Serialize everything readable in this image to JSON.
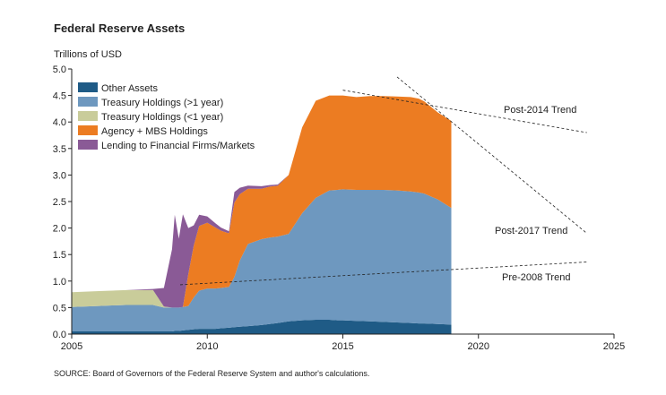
{
  "chart_data": {
    "type": "area",
    "title": "Federal Reserve Assets",
    "ylabel": "Trillions of USD",
    "source": "SOURCE: Board of Governors of the Federal Reserve System and author's calculations.",
    "xlim": [
      2005,
      2025
    ],
    "ylim": [
      0,
      5
    ],
    "x_ticks": [
      "2005",
      "2010",
      "2015",
      "2020",
      "2025"
    ],
    "y_ticks": [
      "0.0",
      "0.5",
      "1.0",
      "1.5",
      "2.0",
      "2.5",
      "3.0",
      "3.5",
      "4.0",
      "4.5",
      "5.0"
    ],
    "stacking_order": [
      "Other Assets",
      "Treasury Holdings (>1 year)",
      "Treasury Holdings (<1 year)",
      "Agency + MBS Holdings",
      "Lending to Financial Firms/Markets"
    ],
    "x": [
      2005.0,
      2006.0,
      2007.0,
      2008.0,
      2008.4,
      2008.7,
      2008.8,
      2008.95,
      2009.1,
      2009.3,
      2009.5,
      2009.7,
      2010.0,
      2010.3,
      2010.5,
      2010.8,
      2011.0,
      2011.2,
      2011.5,
      2012.0,
      2012.3,
      2012.6,
      2013.0,
      2013.5,
      2014.0,
      2014.5,
      2014.8,
      2015.0,
      2015.5,
      2016.0,
      2016.5,
      2017.0,
      2017.5,
      2017.8,
      2018.0,
      2018.5,
      2019.0
    ],
    "series": [
      {
        "name": "Other Assets",
        "color": "#1f5b86",
        "values": [
          0.05,
          0.05,
          0.05,
          0.05,
          0.05,
          0.05,
          0.06,
          0.06,
          0.07,
          0.08,
          0.09,
          0.1,
          0.1,
          0.1,
          0.11,
          0.12,
          0.13,
          0.14,
          0.15,
          0.17,
          0.19,
          0.21,
          0.24,
          0.26,
          0.27,
          0.27,
          0.26,
          0.26,
          0.25,
          0.24,
          0.23,
          0.22,
          0.21,
          0.2,
          0.2,
          0.19,
          0.18
        ]
      },
      {
        "name": "Treasury Holdings (>1 year)",
        "color": "#6e98bf",
        "values": [
          0.46,
          0.48,
          0.5,
          0.5,
          0.45,
          0.45,
          0.44,
          0.44,
          0.44,
          0.45,
          0.6,
          0.72,
          0.76,
          0.76,
          0.76,
          0.77,
          0.95,
          1.25,
          1.55,
          1.62,
          1.63,
          1.63,
          1.65,
          2.02,
          2.3,
          2.44,
          2.46,
          2.47,
          2.47,
          2.48,
          2.49,
          2.49,
          2.48,
          2.47,
          2.45,
          2.35,
          2.2
        ]
      },
      {
        "name": "Treasury Holdings (<1 year)",
        "color": "#c9cc9a",
        "values": [
          0.28,
          0.28,
          0.28,
          0.28,
          0.02,
          0.0,
          0.0,
          0.0,
          0.0,
          0.0,
          0.0,
          0.0,
          0.0,
          0.0,
          0.0,
          0.0,
          0.0,
          0.0,
          0.0,
          0.0,
          0.0,
          0.0,
          0.0,
          0.0,
          0.0,
          0.0,
          0.0,
          0.0,
          0.0,
          0.0,
          0.0,
          0.0,
          0.0,
          0.0,
          0.0,
          0.0,
          0.0
        ]
      },
      {
        "name": "Agency + MBS Holdings",
        "color": "#ec7c22",
        "values": [
          0.0,
          0.0,
          0.0,
          0.0,
          0.0,
          0.0,
          0.0,
          0.0,
          0.0,
          0.6,
          0.98,
          1.22,
          1.24,
          1.15,
          1.08,
          1.01,
          1.4,
          1.25,
          1.04,
          0.95,
          0.96,
          0.96,
          1.11,
          1.62,
          1.83,
          1.79,
          1.78,
          1.77,
          1.75,
          1.77,
          1.77,
          1.77,
          1.78,
          1.77,
          1.74,
          1.64,
          1.64
        ]
      },
      {
        "name": "Lending to Financial Firms/Markets",
        "color": "#8a5a96",
        "values": [
          0.0,
          0.0,
          0.0,
          0.02,
          0.35,
          1.1,
          1.75,
          1.3,
          1.75,
          0.87,
          0.38,
          0.21,
          0.12,
          0.08,
          0.06,
          0.04,
          0.2,
          0.12,
          0.06,
          0.05,
          0.03,
          0.02,
          0.0,
          0.0,
          0.0,
          0.0,
          0.0,
          0.0,
          0.0,
          0.0,
          0.0,
          0.0,
          0.0,
          0.0,
          0.0,
          0.0,
          0.0
        ]
      }
    ],
    "trend_lines": [
      {
        "name": "Pre-2008 Trend",
        "points": [
          [
            2009.0,
            0.93
          ],
          [
            2024.0,
            1.36
          ]
        ]
      },
      {
        "name": "Post-2014 Trend",
        "points": [
          [
            2015.0,
            4.6
          ],
          [
            2024.0,
            3.8
          ]
        ]
      },
      {
        "name": "Post-2017 Trend",
        "points": [
          [
            2017.0,
            4.85
          ],
          [
            2024.0,
            1.9
          ]
        ]
      }
    ],
    "legend_placement": "top-left"
  }
}
